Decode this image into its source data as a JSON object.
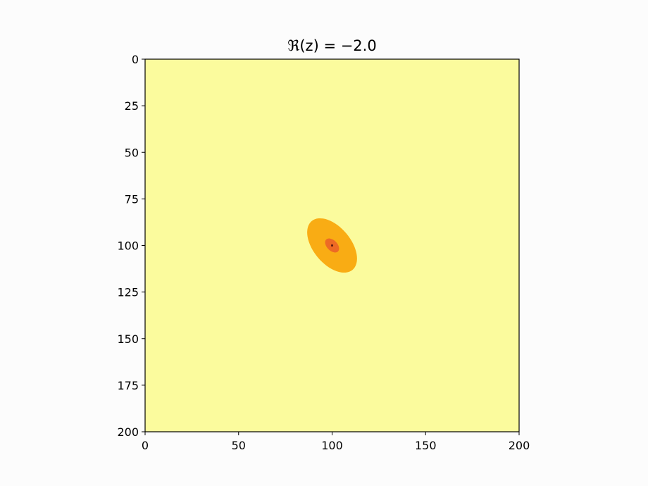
{
  "chart_data": {
    "type": "heatmap",
    "title": "ℜ(z) = −2.0",
    "xlabel": "",
    "ylabel": "",
    "xlim": [
      0,
      200
    ],
    "ylim": [
      200,
      0
    ],
    "x_ticks": [
      "0",
      "50",
      "100",
      "150",
      "200"
    ],
    "y_ticks": [
      "0",
      "25",
      "50",
      "75",
      "100",
      "125",
      "150",
      "175",
      "200"
    ],
    "grid": false,
    "background_color": "#fbfb9d",
    "levels": [
      {
        "level": 1,
        "color": "#fbfb9d",
        "region": "background"
      },
      {
        "level": 2,
        "color": "#f9ac14",
        "region": "ellipse",
        "center": [
          100,
          100
        ],
        "semi_axes": [
          17,
          10
        ],
        "rotation_deg": 50
      },
      {
        "level": 3,
        "color": "#ed6a25",
        "region": "ellipse",
        "center": [
          100,
          100
        ],
        "semi_axes": [
          4.5,
          2.8
        ],
        "rotation_deg": 45
      },
      {
        "level": 4,
        "color": "#4a1010",
        "region": "point",
        "center": [
          100,
          100
        ]
      }
    ]
  }
}
